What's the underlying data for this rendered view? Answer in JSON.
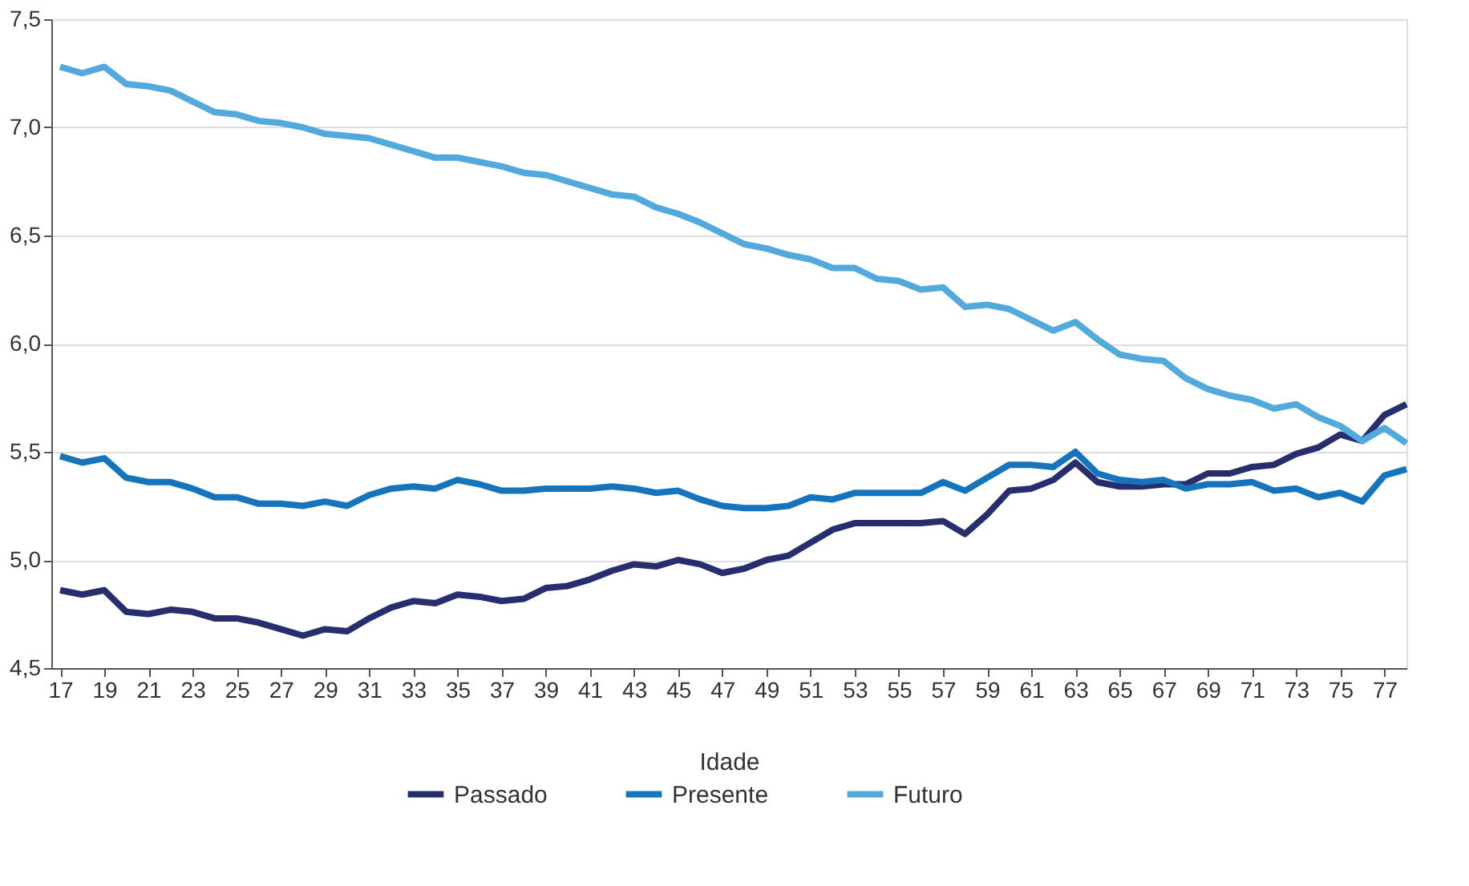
{
  "chart_data": {
    "type": "line",
    "xlabel": "Idade",
    "x": [
      17,
      18,
      19,
      20,
      21,
      22,
      23,
      24,
      25,
      26,
      27,
      28,
      29,
      30,
      31,
      32,
      33,
      34,
      35,
      36,
      37,
      38,
      39,
      40,
      41,
      42,
      43,
      44,
      45,
      46,
      47,
      48,
      49,
      50,
      51,
      52,
      53,
      54,
      55,
      56,
      57,
      58,
      59,
      60,
      61,
      62,
      63,
      64,
      65,
      66,
      67,
      68,
      69,
      70,
      71,
      72,
      73,
      74,
      75,
      76,
      77,
      78
    ],
    "series": [
      {
        "name": "Passado",
        "color": "#262e6e",
        "values": [
          4.86,
          4.84,
          4.86,
          4.76,
          4.75,
          4.77,
          4.76,
          4.73,
          4.73,
          4.71,
          4.68,
          4.65,
          4.68,
          4.67,
          4.73,
          4.78,
          4.81,
          4.8,
          4.84,
          4.83,
          4.81,
          4.82,
          4.87,
          4.88,
          4.91,
          4.95,
          4.98,
          4.97,
          5.0,
          4.98,
          4.94,
          4.96,
          5.0,
          5.02,
          5.08,
          5.14,
          5.17,
          5.17,
          5.17,
          5.17,
          5.18,
          5.12,
          5.21,
          5.32,
          5.33,
          5.37,
          5.45,
          5.36,
          5.34,
          5.34,
          5.35,
          5.35,
          5.4,
          5.4,
          5.43,
          5.44,
          5.49,
          5.52,
          5.58,
          5.55,
          5.67,
          5.72
        ]
      },
      {
        "name": "Presente",
        "color": "#1574bc",
        "values": [
          5.48,
          5.45,
          5.47,
          5.38,
          5.36,
          5.36,
          5.33,
          5.29,
          5.29,
          5.26,
          5.26,
          5.25,
          5.27,
          5.25,
          5.3,
          5.33,
          5.34,
          5.33,
          5.37,
          5.35,
          5.32,
          5.32,
          5.33,
          5.33,
          5.33,
          5.34,
          5.33,
          5.31,
          5.32,
          5.28,
          5.25,
          5.24,
          5.24,
          5.25,
          5.29,
          5.28,
          5.31,
          5.31,
          5.31,
          5.31,
          5.36,
          5.32,
          5.38,
          5.44,
          5.44,
          5.43,
          5.5,
          5.4,
          5.37,
          5.36,
          5.37,
          5.33,
          5.35,
          5.35,
          5.36,
          5.32,
          5.33,
          5.29,
          5.31,
          5.27,
          5.39,
          5.42
        ]
      },
      {
        "name": "Futuro",
        "color": "#52aadc",
        "values": [
          7.28,
          7.25,
          7.28,
          7.2,
          7.19,
          7.17,
          7.12,
          7.07,
          7.06,
          7.03,
          7.02,
          7.0,
          6.97,
          6.96,
          6.95,
          6.92,
          6.89,
          6.86,
          6.86,
          6.84,
          6.82,
          6.79,
          6.78,
          6.75,
          6.72,
          6.69,
          6.68,
          6.63,
          6.6,
          6.56,
          6.51,
          6.46,
          6.44,
          6.41,
          6.39,
          6.35,
          6.35,
          6.3,
          6.29,
          6.25,
          6.26,
          6.17,
          6.18,
          6.16,
          6.11,
          6.06,
          6.1,
          6.02,
          5.95,
          5.93,
          5.92,
          5.84,
          5.79,
          5.76,
          5.74,
          5.7,
          5.72,
          5.66,
          5.62,
          5.55,
          5.61,
          5.54
        ]
      }
    ],
    "xlim": [
      16.6,
      78
    ],
    "xticks": [
      17,
      19,
      21,
      23,
      25,
      27,
      29,
      31,
      33,
      35,
      37,
      39,
      41,
      43,
      45,
      47,
      49,
      51,
      53,
      55,
      57,
      59,
      61,
      63,
      65,
      67,
      69,
      71,
      73,
      75,
      77
    ],
    "ylim": [
      4.5,
      7.5
    ],
    "yticks": [
      {
        "value": 4.5,
        "label": "4,5"
      },
      {
        "value": 5.0,
        "label": "5,0"
      },
      {
        "value": 5.5,
        "label": "5,5"
      },
      {
        "value": 6.0,
        "label": "6,0"
      },
      {
        "value": 6.5,
        "label": "6,5"
      },
      {
        "value": 7.0,
        "label": "7,0"
      },
      {
        "value": 7.5,
        "label": "7,5"
      }
    ],
    "grid": "y",
    "legend": "bottom",
    "line_style": "solid",
    "marker": "none"
  }
}
